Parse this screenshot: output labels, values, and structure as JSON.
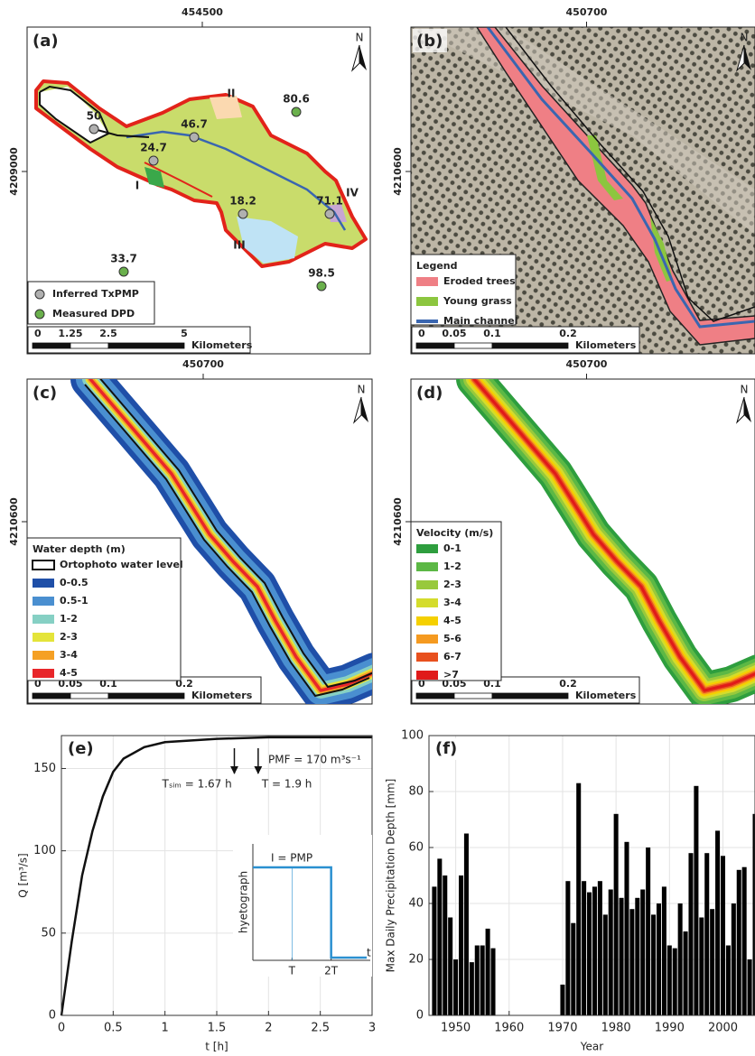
{
  "maps": {
    "a": {
      "label": "(a)",
      "easting": "454500",
      "northing": "4209000",
      "north": "N",
      "points": [
        {
          "label": "50",
          "color": "#b0b0b0"
        },
        {
          "label": "46.7",
          "color": "#b0b0b0"
        },
        {
          "label": "24.7",
          "color": "#b0b0b0"
        },
        {
          "label": "18.2",
          "color": "#b0b0b0"
        },
        {
          "label": "71.1",
          "color": "#b0b0b0"
        },
        {
          "label": "80.6",
          "color": "#6ab04c"
        },
        {
          "label": "33.7",
          "color": "#6ab04c"
        },
        {
          "label": "98.5",
          "color": "#6ab04c"
        }
      ],
      "zones": [
        {
          "label": "I",
          "color": "#3aa84a"
        },
        {
          "label": "II",
          "color": "#f4a77a"
        },
        {
          "label": "III",
          "color": "#35a8e0"
        },
        {
          "label": "IV",
          "color": "#8a4fa0"
        }
      ],
      "legend": [
        {
          "label": "Inferred TxPMP",
          "color": "#b0b0b0"
        },
        {
          "label": "Measured DPD",
          "color": "#6ab04c"
        }
      ],
      "scale": [
        "0",
        "1.25",
        "2.5",
        "5"
      ],
      "unit": "Kilometers"
    },
    "b": {
      "label": "(b)",
      "easting": "450700",
      "northing": "4210600",
      "north": "N",
      "legend_title": "Legend",
      "legend": [
        {
          "label": "Eroded trees",
          "color": "#ef7f85"
        },
        {
          "label": "Young grass",
          "color": "#8cc63f"
        },
        {
          "label": "Main channel",
          "color": "#3a66b0"
        }
      ],
      "scale": [
        "0",
        "0.05",
        "0.1",
        "0.2"
      ],
      "unit": "Kilometers"
    },
    "c": {
      "label": "(c)",
      "easting": "450700",
      "northing": "4210600",
      "north": "N",
      "legend_title": "Water depth (m)",
      "legend": [
        {
          "label": "Ortophoto water level",
          "color": "#ffffff"
        },
        {
          "label": "0-0.5",
          "color": "#1f4fa8"
        },
        {
          "label": "0.5-1",
          "color": "#4a8fd0"
        },
        {
          "label": "1-2",
          "color": "#86d0c4"
        },
        {
          "label": "2-3",
          "color": "#e4e43a"
        },
        {
          "label": "3-4",
          "color": "#f5a024"
        },
        {
          "label": "4-5",
          "color": "#e8262a"
        }
      ],
      "scale": [
        "0",
        "0.05",
        "0.1",
        "0.2"
      ],
      "unit": "Kilometers"
    },
    "d": {
      "label": "(d)",
      "easting": "450700",
      "northing": "4210600",
      "north": "N",
      "legend_title": "Velocity (m/s)",
      "legend": [
        {
          "label": "0-1",
          "color": "#2e9e3e"
        },
        {
          "label": "1-2",
          "color": "#5cb845"
        },
        {
          "label": "2-3",
          "color": "#98c93c"
        },
        {
          "label": "3-4",
          "color": "#d4dc2c"
        },
        {
          "label": "4-5",
          "color": "#f5d000"
        },
        {
          "label": "5-6",
          "color": "#f59a20"
        },
        {
          "label": "6-7",
          "color": "#e8501e"
        },
        {
          "label": ">7",
          "color": "#e01a1a"
        }
      ],
      "scale": [
        "0",
        "0.05",
        "0.1",
        "0.2"
      ],
      "unit": "Kilometers"
    }
  },
  "chart_data": [
    {
      "type": "line",
      "label": "(e)",
      "xlabel": "t  [h]",
      "ylabel": "Q [m³/s]",
      "color": "#111111",
      "x": [
        0,
        0.1,
        0.2,
        0.3,
        0.4,
        0.5,
        0.6,
        0.8,
        1,
        1.5,
        2,
        2.5,
        3
      ],
      "values": [
        0,
        45,
        85,
        112,
        133,
        148,
        156,
        163,
        166,
        168,
        169,
        169,
        169
      ],
      "xlim": [
        0,
        3
      ],
      "ylim": [
        0,
        170
      ],
      "xticks": [
        0,
        0.5,
        1,
        1.5,
        2,
        2.5,
        3
      ],
      "yticks": [
        0,
        50,
        100,
        150
      ],
      "grid": true,
      "annotations": [
        {
          "text": "PMF = 170 m³s⁻¹"
        },
        {
          "text": "Tₛᵢₘ = 1.67 h",
          "x": 1.67,
          "y": 147
        },
        {
          "text": "T = 1.9 h",
          "x": 1.9,
          "y": 147
        }
      ],
      "inset": {
        "ylabel": "hyetograph",
        "xlabel": "t",
        "level_label": "I = PMP",
        "color": "#2a90d0",
        "xlim": [
          0,
          3
        ],
        "xticks": [
          {
            "value": 1,
            "label": "T"
          },
          {
            "value": 2,
            "label": "2T"
          }
        ]
      }
    },
    {
      "type": "bar",
      "label": "(f)",
      "xlabel": "Year",
      "ylabel": "Max Daily Precipitation Depth [mm]",
      "color": "#000000",
      "x": [
        1946,
        1947,
        1948,
        1949,
        1950,
        1951,
        1952,
        1953,
        1954,
        1955,
        1956,
        1957,
        1970,
        1971,
        1972,
        1973,
        1974,
        1975,
        1976,
        1977,
        1978,
        1979,
        1980,
        1981,
        1982,
        1983,
        1984,
        1985,
        1986,
        1987,
        1988,
        1989,
        1990,
        1991,
        1992,
        1993,
        1994,
        1995,
        1996,
        1997,
        1998,
        1999,
        2000,
        2001,
        2002,
        2003,
        2004,
        2005,
        2006
      ],
      "values": [
        46,
        56,
        50,
        35,
        20,
        50,
        65,
        19,
        25,
        25,
        31,
        24,
        11,
        48,
        33,
        83,
        48,
        44,
        46,
        48,
        36,
        45,
        72,
        42,
        62,
        38,
        42,
        45,
        60,
        36,
        40,
        46,
        25,
        24,
        40,
        30,
        58,
        82,
        35,
        58,
        38,
        66,
        57,
        25,
        40,
        52,
        53,
        20,
        72
      ],
      "xlim": [
        1945,
        2006
      ],
      "ylim": [
        0,
        100
      ],
      "xticks": [
        1950,
        1960,
        1970,
        1980,
        1990,
        2000
      ],
      "yticks": [
        0,
        20,
        40,
        60,
        80,
        100
      ],
      "grid": true
    }
  ]
}
